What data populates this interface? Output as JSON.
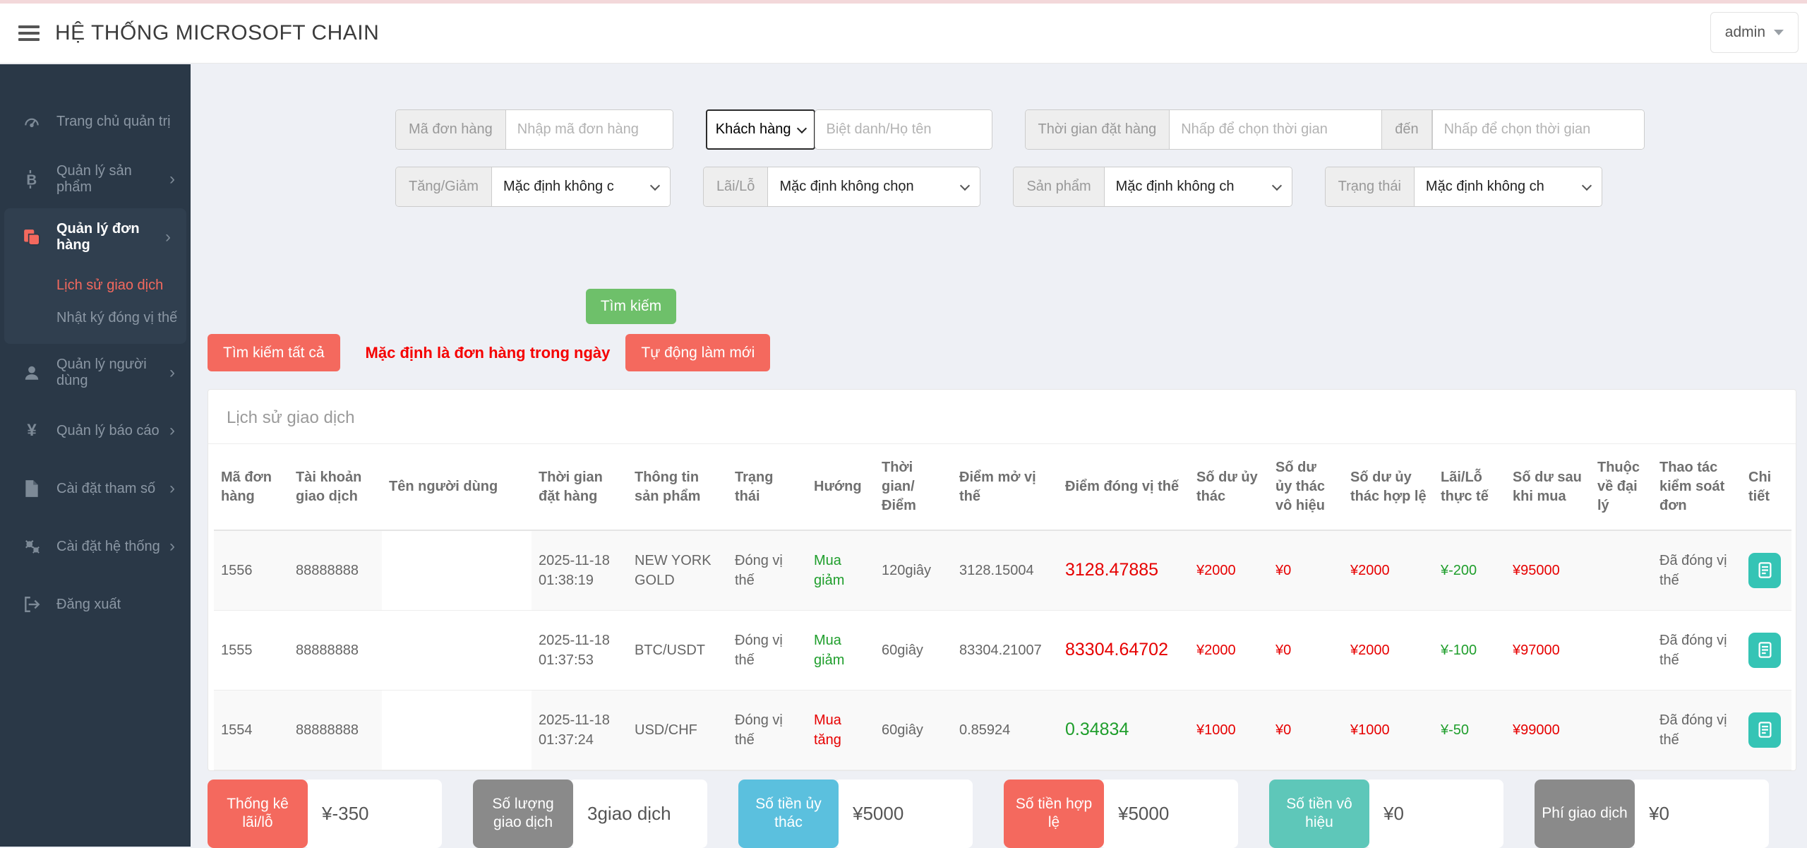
{
  "header": {
    "title": "HỆ THỐNG MICROSOFT CHAIN",
    "user": "admin"
  },
  "sidebar": {
    "items": [
      {
        "label": "Trang chủ quản trị"
      },
      {
        "label": "Quản lý sản phẩm"
      },
      {
        "label": "Quản lý đơn hàng"
      },
      {
        "label": "Lịch sử giao dịch"
      },
      {
        "label": "Nhật ký đóng vị thế"
      },
      {
        "label": "Quản lý người dùng"
      },
      {
        "label": "Quản lý báo cáo"
      },
      {
        "label": "Cài đặt tham số"
      },
      {
        "label": "Cài đặt hệ thống"
      },
      {
        "label": "Đăng xuất"
      }
    ]
  },
  "filters": {
    "order_code": {
      "label": "Mã đơn hàng",
      "placeholder": "Nhập mã đơn hàng"
    },
    "customer": {
      "select_value": "Khách hàng",
      "placeholder": "Biệt danh/Họ tên"
    },
    "time_range": {
      "label": "Thời gian đặt hàng",
      "placeholder_from": "Nhấp để chọn thời gian",
      "mid": "đến",
      "placeholder_to": "Nhấp để chọn thời gian"
    },
    "updown": {
      "label": "Tăng/Giảm",
      "value": "Mặc định không c"
    },
    "profit": {
      "label": "Lãi/Lỗ",
      "value": "Mặc định không chọn"
    },
    "product": {
      "label": "Sản phẩm",
      "value": "Mặc định không ch"
    },
    "status": {
      "label": "Trạng thái",
      "value": "Mặc định không ch"
    }
  },
  "buttons": {
    "search": "Tìm kiếm",
    "search_all": "Tìm kiếm tất cả",
    "note": "Mặc định là đơn hàng trong ngày",
    "auto_refresh": "Tự động làm mới"
  },
  "panel": {
    "title": "Lịch sử giao dịch",
    "columns": [
      "Mã đơn hàng",
      "Tài khoản giao dịch",
      "Tên người dùng",
      "Thời gian đặt hàng",
      "Thông tin sản phẩm",
      "Trạng thái",
      "Hướng",
      "Thời gian/ Điểm",
      "Điểm mở vị thế",
      "Điểm đóng vị thế",
      "Số dư ủy thác",
      "Số dư ủy thác vô hiệu",
      "Số dư ủy thác hợp lệ",
      "Lãi/Lỗ thực tế",
      "Số dư sau khi mua",
      "Thuộc về đại lý",
      "Thao tác kiểm soát đơn",
      "Chi tiết"
    ],
    "rows": [
      [
        "1556",
        "88888888",
        "",
        "2025-11-18 01:38:19",
        "NEW YORK GOLD",
        "Đóng vị thế",
        {
          "t": "Mua giảm",
          "c": "green"
        },
        "120giây",
        "3128.15004",
        {
          "t": "3128.47885",
          "c": "bigred"
        },
        {
          "t": "¥2000",
          "c": "red"
        },
        {
          "t": "¥0",
          "c": "red"
        },
        {
          "t": "¥2000",
          "c": "red"
        },
        {
          "t": "¥-200",
          "c": "green"
        },
        {
          "t": "¥95000",
          "c": "red"
        },
        "",
        "Đã đóng vị thế",
        {
          "icon": "detail"
        }
      ],
      [
        "1555",
        "88888888",
        "",
        "2025-11-18 01:37:53",
        "BTC/USDT",
        "Đóng vị thế",
        {
          "t": "Mua giảm",
          "c": "green"
        },
        "60giây",
        "83304.21007",
        {
          "t": "83304.64702",
          "c": "bigred"
        },
        {
          "t": "¥2000",
          "c": "red"
        },
        {
          "t": "¥0",
          "c": "red"
        },
        {
          "t": "¥2000",
          "c": "red"
        },
        {
          "t": "¥-100",
          "c": "green"
        },
        {
          "t": "¥97000",
          "c": "red"
        },
        "",
        "Đã đóng vị thế",
        {
          "icon": "detail"
        }
      ],
      [
        "1554",
        "88888888",
        "",
        "2025-11-18 01:37:24",
        "USD/CHF",
        "Đóng vị thế",
        {
          "t": "Mua tăng",
          "c": "red"
        },
        "60giây",
        "0.85924",
        {
          "t": "0.34834",
          "c": "biggreen"
        },
        {
          "t": "¥1000",
          "c": "red"
        },
        {
          "t": "¥0",
          "c": "red"
        },
        {
          "t": "¥1000",
          "c": "red"
        },
        {
          "t": "¥-50",
          "c": "green"
        },
        {
          "t": "¥99000",
          "c": "red"
        },
        "",
        "Đã đóng vị thế",
        {
          "icon": "detail"
        }
      ]
    ]
  },
  "summary": [
    {
      "label": "Thống kê lãi/lỗ",
      "value": "¥-350",
      "color": "#f4695e"
    },
    {
      "label": "Số lượng giao dịch",
      "value": "3giao dịch",
      "color": "#8a8a8a"
    },
    {
      "label": "Số tiền ủy thác",
      "value": "¥5000",
      "color": "#5bc0de"
    },
    {
      "label": "Số tiền hợp lệ",
      "value": "¥5000",
      "color": "#f4695e"
    },
    {
      "label": "Số tiền vô hiệu",
      "value": "¥0",
      "color": "#5ec7b9"
    },
    {
      "label": "Phí giao dịch",
      "value": "¥0",
      "color": "#8a8a8a"
    }
  ],
  "colors": {
    "accent_red": "#f4695e",
    "green": "#1f9e2c",
    "red": "#e60000",
    "teal": "#35c4b5",
    "button_green": "#6ec06a",
    "sidebar_bg": "#2a3847"
  }
}
